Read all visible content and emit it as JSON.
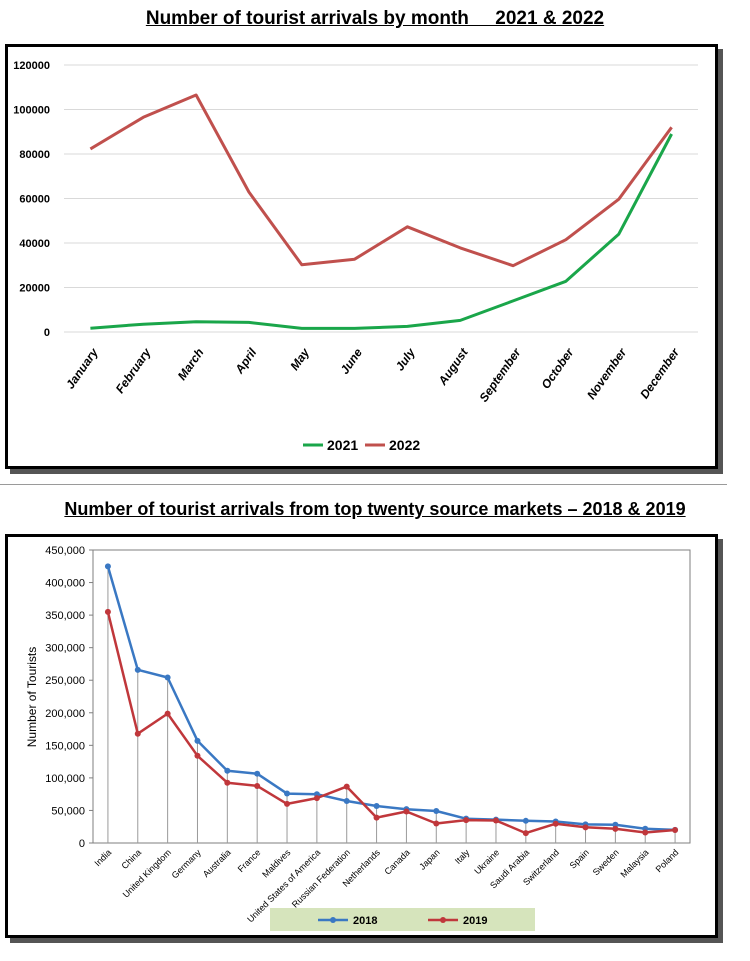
{
  "page": {
    "title1": "Number of tourist arrivals by month     2021 & 2022",
    "title2": "Number of tourist arrivals from top twenty source markets – 2018 & 2019"
  },
  "chart_data": [
    {
      "type": "line",
      "title": "Number of tourist arrivals by month     2021 & 2022",
      "categories": [
        "January",
        "February",
        "March",
        "April",
        "May",
        "June",
        "July",
        "August",
        "September",
        "October",
        "November",
        "December"
      ],
      "series": [
        {
          "name": "2021",
          "color": "#1aa64a",
          "values": [
            1700,
            3500,
            4600,
            4300,
            1600,
            1600,
            2500,
            5200,
            14000,
            22800,
            44000,
            89000
          ]
        },
        {
          "name": "2022",
          "color": "#c0504d",
          "values": [
            82300,
            96500,
            106500,
            62900,
            30200,
            32700,
            47300,
            37800,
            29800,
            41500,
            59700,
            92000
          ]
        }
      ],
      "yticks": [
        "0",
        "20000",
        "40000",
        "60000",
        "80000",
        "100000",
        "120000"
      ],
      "ylim": [
        0,
        120000
      ],
      "grid": true,
      "legend": "bottom"
    },
    {
      "type": "line",
      "title": "Number of tourist arrivals from top twenty source markets – 2018 & 2019",
      "ylabel": "Number of Tourists",
      "categories": [
        "India",
        "China",
        "United Kingdom",
        "Germany",
        "Australia",
        "France",
        "Maldives",
        "United States of America",
        "Russian Federation",
        "Netherlands",
        "Canada",
        "Japan",
        "Italy",
        "Ukraine",
        "Saudi Arabia",
        "Switzerland",
        "Spain",
        "Sweden",
        "Malaysia",
        "Poland"
      ],
      "series": [
        {
          "name": "2018",
          "color": "#3a78c3",
          "values": [
            424887,
            265965,
            254176,
            156888,
            110928,
            106449,
            75935,
            74909,
            64497,
            56875,
            51986,
            49090,
            37391,
            35974,
            34080,
            32983,
            28631,
            27999,
            21961,
            20130
          ]
        },
        {
          "name": "2019",
          "color": "#c0373b",
          "values": [
            355002,
            167863,
            198776,
            133959,
            92596,
            87623,
            60092,
            68979,
            86549,
            39017,
            48416,
            29997,
            35099,
            34541,
            15155,
            29583,
            24052,
            21767,
            16146,
            20000
          ]
        }
      ],
      "yticks": [
        "0",
        "50,000",
        "100,000",
        "150,000",
        "200,000",
        "250,000",
        "300,000",
        "350,000",
        "400,000",
        "450,000"
      ],
      "ylim": [
        0,
        450000
      ],
      "grid": false,
      "legend": "bottom"
    }
  ]
}
